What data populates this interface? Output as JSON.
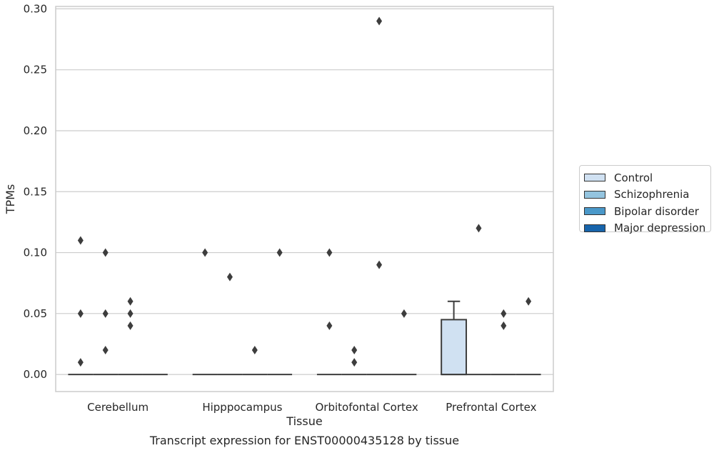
{
  "chart_data": {
    "type": "box",
    "title": "",
    "xlabel": "Tissue",
    "ylabel": "TPMs",
    "caption": "Transcript expression for ENST00000435128 by tissue",
    "ylim": [
      -0.014,
      0.302
    ],
    "yticks": [
      "0.00",
      "0.05",
      "0.10",
      "0.15",
      "0.20",
      "0.25",
      "0.30"
    ],
    "grid": true,
    "legend_position": "right",
    "categories": [
      "Cerebellum",
      "Hipppocampus",
      "Orbitofontal Cortex",
      "Prefrontal Cortex"
    ],
    "series": [
      {
        "name": "Control",
        "color": "#d0e1f2",
        "boxes": [
          {
            "q1": 0,
            "median": 0,
            "q3": 0,
            "whisker_low": 0,
            "whisker_high": 0,
            "outliers": [
              0.11,
              0.05,
              0.01
            ]
          },
          {
            "q1": 0,
            "median": 0,
            "q3": 0,
            "whisker_low": 0,
            "whisker_high": 0,
            "outliers": [
              0.1
            ]
          },
          {
            "q1": 0,
            "median": 0,
            "q3": 0,
            "whisker_low": 0,
            "whisker_high": 0,
            "outliers": [
              0.1,
              0.04
            ]
          },
          {
            "q1": 0,
            "median": 0,
            "q3": 0.045,
            "whisker_low": 0,
            "whisker_high": 0.06,
            "outliers": []
          }
        ]
      },
      {
        "name": "Schizophrenia",
        "color": "#94c4df",
        "boxes": [
          {
            "q1": 0,
            "median": 0,
            "q3": 0,
            "whisker_low": 0,
            "whisker_high": 0,
            "outliers": [
              0.1,
              0.05,
              0.02
            ]
          },
          {
            "q1": 0,
            "median": 0,
            "q3": 0,
            "whisker_low": 0,
            "whisker_high": 0,
            "outliers": [
              0.08
            ]
          },
          {
            "q1": 0,
            "median": 0,
            "q3": 0,
            "whisker_low": 0,
            "whisker_high": 0,
            "outliers": [
              0.02,
              0.01
            ]
          },
          {
            "q1": 0,
            "median": 0,
            "q3": 0,
            "whisker_low": 0,
            "whisker_high": 0,
            "outliers": [
              0.12
            ]
          }
        ]
      },
      {
        "name": "Bipolar disorder",
        "color": "#4a98c9",
        "boxes": [
          {
            "q1": 0,
            "median": 0,
            "q3": 0,
            "whisker_low": 0,
            "whisker_high": 0,
            "outliers": [
              0.06,
              0.05,
              0.04
            ]
          },
          {
            "q1": 0,
            "median": 0,
            "q3": 0,
            "whisker_low": 0,
            "whisker_high": 0,
            "outliers": [
              0.02
            ]
          },
          {
            "q1": 0,
            "median": 0,
            "q3": 0,
            "whisker_low": 0,
            "whisker_high": 0,
            "outliers": [
              0.29,
              0.09
            ]
          },
          {
            "q1": 0,
            "median": 0,
            "q3": 0,
            "whisker_low": 0,
            "whisker_high": 0,
            "outliers": [
              0.05,
              0.04
            ]
          }
        ]
      },
      {
        "name": "Major depression",
        "color": "#1764ab",
        "boxes": [
          {
            "q1": 0,
            "median": 0,
            "q3": 0,
            "whisker_low": 0,
            "whisker_high": 0,
            "outliers": []
          },
          {
            "q1": 0,
            "median": 0,
            "q3": 0,
            "whisker_low": 0,
            "whisker_high": 0,
            "outliers": [
              0.1
            ]
          },
          {
            "q1": 0,
            "median": 0,
            "q3": 0,
            "whisker_low": 0,
            "whisker_high": 0,
            "outliers": [
              0.05
            ]
          },
          {
            "q1": 0,
            "median": 0,
            "q3": 0,
            "whisker_low": 0,
            "whisker_high": 0,
            "outliers": [
              0.06
            ]
          }
        ]
      }
    ]
  }
}
